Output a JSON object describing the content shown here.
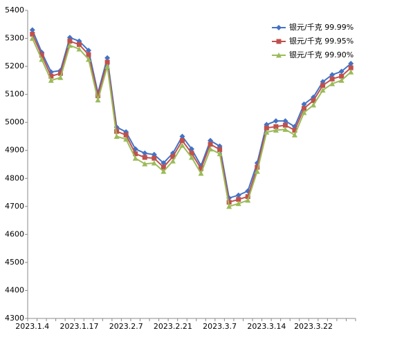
{
  "chart_data": {
    "type": "line",
    "categories": [
      "2023.1.4",
      null,
      null,
      null,
      null,
      "2023.1.17",
      null,
      null,
      null,
      null,
      "2023.2.7",
      null,
      null,
      null,
      null,
      "2023.2.21",
      null,
      null,
      null,
      null,
      "2023.3.7",
      null,
      null,
      null,
      null,
      "2023.3.14",
      null,
      null,
      null,
      null,
      "2023.3.22",
      null,
      null,
      null,
      null
    ],
    "ylim": [
      4300,
      5400
    ],
    "yticks": [
      4300,
      4400,
      4500,
      4600,
      4700,
      4800,
      4900,
      5000,
      5100,
      5200,
      5300,
      5400
    ],
    "grid": false,
    "legend": "top-right",
    "series": [
      {
        "name": "银元/千克 99.99%",
        "color": "#4472c4",
        "marker": "diamond",
        "values": [
          5330,
          5250,
          5180,
          5185,
          5303,
          5290,
          5257,
          5105,
          5230,
          4983,
          4966,
          4905,
          4890,
          4885,
          4855,
          4890,
          4950,
          4905,
          4845,
          4935,
          4915,
          4730,
          4740,
          4755,
          4855,
          4992,
          5005,
          5005,
          4985,
          5065,
          5090,
          5145,
          5170,
          5182,
          5210
        ]
      },
      {
        "name": "银元/千克 99.95%",
        "color": "#c0504d",
        "marker": "square",
        "values": [
          5315,
          5240,
          5165,
          5175,
          5290,
          5278,
          5242,
          5095,
          5215,
          4968,
          4955,
          4888,
          4875,
          4872,
          4840,
          4878,
          4935,
          4890,
          4835,
          4922,
          4903,
          4715,
          4725,
          4735,
          4840,
          4980,
          4985,
          4990,
          4972,
          5050,
          5078,
          5132,
          5155,
          5165,
          5195
        ]
      },
      {
        "name": "银元/千克 99.90%",
        "color": "#9bbb59",
        "marker": "triangle",
        "values": [
          5300,
          5225,
          5150,
          5160,
          5275,
          5262,
          5225,
          5080,
          5200,
          4950,
          4940,
          4872,
          4852,
          4855,
          4825,
          4862,
          4918,
          4875,
          4818,
          4905,
          4888,
          4700,
          4710,
          4722,
          4825,
          4965,
          4972,
          4975,
          4955,
          5035,
          5062,
          5115,
          5138,
          5150,
          5180
        ]
      }
    ]
  }
}
